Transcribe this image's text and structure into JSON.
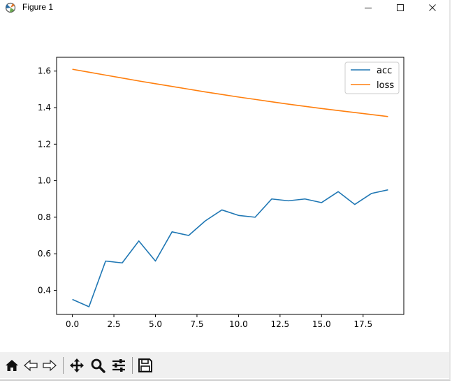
{
  "window": {
    "title": "Figure 1",
    "app_icon": "matplotlib-figure-icon",
    "controls": {
      "minimize_icon": "minimize-icon",
      "maximize_icon": "maximize-icon",
      "close_icon": "close-icon"
    }
  },
  "toolbar": {
    "buttons": [
      {
        "name": "home",
        "icon": "home-icon"
      },
      {
        "name": "back",
        "icon": "back-arrow-icon"
      },
      {
        "name": "forward",
        "icon": "forward-arrow-icon"
      },
      {
        "name": "pan",
        "icon": "pan-move-icon"
      },
      {
        "name": "zoom",
        "icon": "zoom-magnifier-icon"
      },
      {
        "name": "configure-subplots",
        "icon": "sliders-icon"
      },
      {
        "name": "save",
        "icon": "save-floppy-icon"
      }
    ]
  },
  "chart_data": {
    "type": "line",
    "title": "",
    "xlabel": "",
    "ylabel": "",
    "xlim": [
      -0.95,
      19.95
    ],
    "ylim": [
      0.2679,
      1.6755
    ],
    "xticks": [
      0.0,
      2.5,
      5.0,
      7.5,
      10.0,
      12.5,
      15.0,
      17.5
    ],
    "xtick_labels": [
      "0.0",
      "2.5",
      "5.0",
      "7.5",
      "10.0",
      "12.5",
      "15.0",
      "17.5"
    ],
    "yticks": [
      0.4,
      0.6,
      0.8,
      1.0,
      1.2,
      1.4,
      1.6
    ],
    "ytick_labels": [
      "0.4",
      "0.6",
      "0.8",
      "1.0",
      "1.2",
      "1.4",
      "1.6"
    ],
    "grid": false,
    "legend_position": "upper right",
    "x": [
      0,
      1,
      2,
      3,
      4,
      5,
      6,
      7,
      8,
      9,
      10,
      11,
      12,
      13,
      14,
      15,
      16,
      17,
      18,
      19
    ],
    "series": [
      {
        "name": "acc",
        "color": "#1f77b4",
        "values": [
          0.35,
          0.31,
          0.56,
          0.55,
          0.67,
          0.56,
          0.72,
          0.7,
          0.78,
          0.84,
          0.81,
          0.8,
          0.9,
          0.89,
          0.9,
          0.88,
          0.94,
          0.87,
          0.93,
          0.95
        ]
      },
      {
        "name": "loss",
        "color": "#ff7f0e",
        "values": [
          1.61,
          1.594,
          1.578,
          1.562,
          1.546,
          1.531,
          1.516,
          1.501,
          1.486,
          1.472,
          1.458,
          1.445,
          1.432,
          1.419,
          1.407,
          1.395,
          1.384,
          1.373,
          1.362,
          1.351
        ]
      }
    ]
  }
}
